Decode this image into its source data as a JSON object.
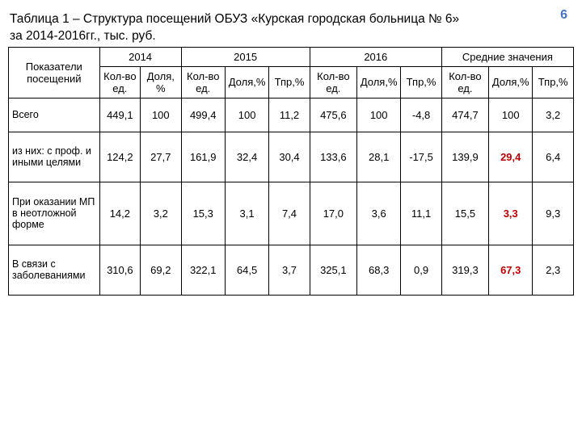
{
  "page_number": "6",
  "title_line1": "Таблица 1 – Структура посещений ОБУЗ «Курская городская больница № 6»",
  "title_line2": "за 2014-2016гг., тыс. руб.",
  "columns": {
    "row_label_header": "Показатели посещений",
    "year_groups": [
      "2014",
      "2015",
      "2016",
      "Средние значения"
    ],
    "sub_2014": [
      "Кол-во ед.",
      "Доля,%"
    ],
    "sub_2015": [
      "Кол-во ед.",
      "Доля,%",
      "Тпр,%"
    ],
    "sub_2016": [
      "Кол-во ед.",
      "Доля,%",
      "Тпр,%"
    ],
    "sub_avg": [
      "Кол-во ед.",
      "Доля,%",
      "Тпр,%"
    ]
  },
  "col_widths_pct": [
    14.5,
    6.5,
    6.5,
    7,
    7,
    6.5,
    7.5,
    7,
    6.5,
    7.5,
    7,
    6.5
  ],
  "rows": [
    {
      "label": "Всего",
      "cells": [
        "449,1",
        "100",
        "499,4",
        "100",
        "11,2",
        "475,6",
        "100",
        "-4,8",
        "474,7",
        "100",
        "3,2"
      ],
      "highlight": [
        false,
        false,
        false,
        false,
        false,
        false,
        false,
        false,
        false,
        false,
        false
      ]
    },
    {
      "label": " из них: с проф. и иными целями",
      "cells": [
        "124,2",
        "27,7",
        "161,9",
        "32,4",
        "30,4",
        "133,6",
        "28,1",
        "-17,5",
        "139,9",
        "29,4",
        "6,4"
      ],
      "highlight": [
        false,
        false,
        false,
        false,
        false,
        false,
        false,
        false,
        false,
        true,
        false
      ]
    },
    {
      "label": " При оказании МП в неотложной форме",
      "cells": [
        "14,2",
        "3,2",
        "15,3",
        "3,1",
        "7,4",
        "17,0",
        "3,6",
        "11,1",
        "15,5",
        "3,3",
        "9,3"
      ],
      "highlight": [
        false,
        false,
        false,
        false,
        false,
        false,
        false,
        false,
        false,
        true,
        false
      ]
    },
    {
      "label": " В связи с заболеваниями",
      "cells": [
        "310,6",
        "69,2",
        "322,1",
        "64,5",
        "3,7",
        "325,1",
        "68,3",
        "0,9",
        "319,3",
        "67,3",
        "2,3"
      ],
      "highlight": [
        false,
        false,
        false,
        false,
        false,
        false,
        false,
        false,
        false,
        true,
        false
      ]
    }
  ],
  "styling": {
    "page_number_color": "#4472c4",
    "highlight_color": "#c00000",
    "border_color": "#000000",
    "background_color": "#ffffff",
    "title_fontsize": 15.5,
    "cell_fontsize": 13
  }
}
